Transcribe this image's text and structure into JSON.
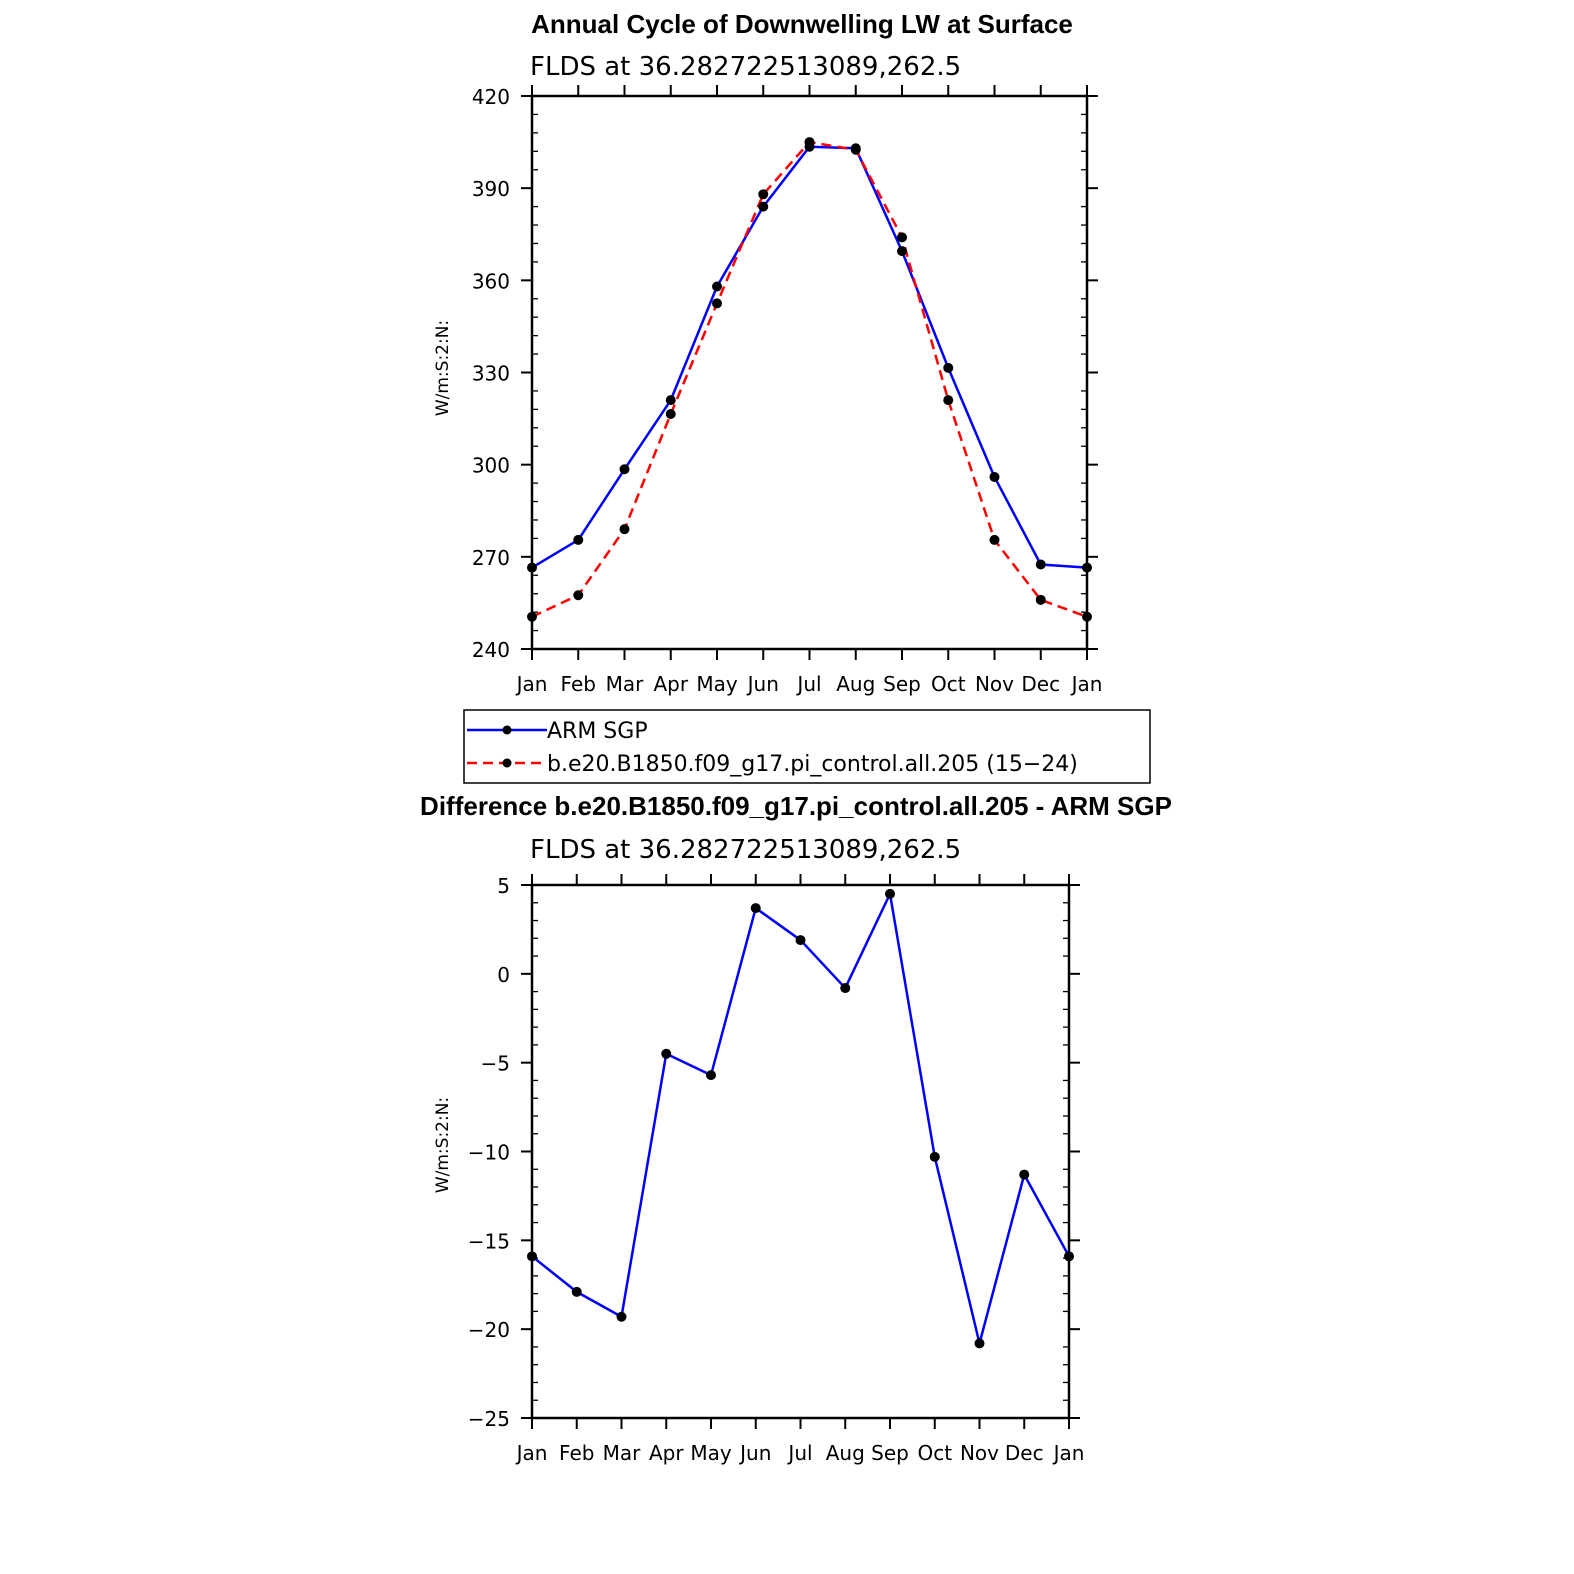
{
  "chart_data": [
    {
      "type": "line",
      "title": "Annual Cycle of Downwelling LW at Surface",
      "subtitle": "FLDS at 36.282722513089,262.5",
      "ylabel": "W/m:S:2:N:",
      "categories": [
        "Jan",
        "Feb",
        "Mar",
        "Apr",
        "May",
        "Jun",
        "Jul",
        "Aug",
        "Sep",
        "Oct",
        "Nov",
        "Dec",
        "Jan"
      ],
      "ylim": [
        240,
        420
      ],
      "yticks": [
        "240",
        "270",
        "300",
        "330",
        "360",
        "390",
        "420"
      ],
      "series": [
        {
          "name": "ARM SGP",
          "color": "#0000ff",
          "dash": "solid",
          "values": [
            266.5,
            275.5,
            298.5,
            321,
            358,
            384,
            403.5,
            403,
            369.5,
            331.5,
            296,
            267.5,
            266.5
          ]
        },
        {
          "name": "b.e20.B1850.f09_g17.pi_control.all.205 (15−24)",
          "color": "#ff0000",
          "dash": "dashed",
          "values": [
            250.5,
            257.5,
            279,
            316.5,
            352.5,
            388,
            405,
            402.5,
            374,
            321,
            275.5,
            256,
            250.5
          ]
        }
      ],
      "legend": "below"
    },
    {
      "type": "line",
      "title": "Difference b.e20.B1850.f09_g17.pi_control.all.205 - ARM SGP",
      "subtitle": "FLDS at 36.282722513089,262.5",
      "ylabel": "W/m:S:2:N:",
      "categories": [
        "Jan",
        "Feb",
        "Mar",
        "Apr",
        "May",
        "Jun",
        "Jul",
        "Aug",
        "Sep",
        "Oct",
        "Nov",
        "Dec",
        "Jan"
      ],
      "ylim": [
        -25,
        5
      ],
      "yticks": [
        "−25",
        "−20",
        "−15",
        "−10",
        "−5",
        "0",
        "5"
      ],
      "series": [
        {
          "color": "#0000ff",
          "dash": "solid",
          "values": [
            -15.9,
            -17.9,
            -19.3,
            -4.5,
            -5.7,
            3.7,
            1.9,
            -0.8,
            4.5,
            -10.3,
            -20.8,
            -11.3,
            -15.9
          ]
        }
      ]
    }
  ]
}
